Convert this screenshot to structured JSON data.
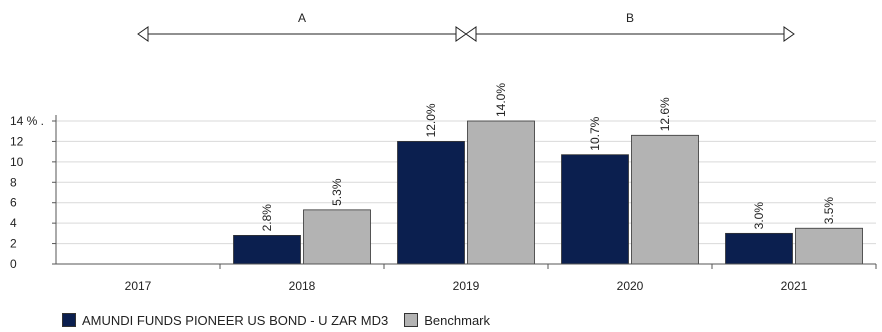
{
  "chart_data": {
    "type": "bar",
    "categories": [
      "2017",
      "2018",
      "2019",
      "2020",
      "2021"
    ],
    "series": [
      {
        "name": "AMUNDI FUNDS PIONEER US BOND - U ZAR MD3",
        "color": "#0b1f4f",
        "values": [
          null,
          2.8,
          12.0,
          10.7,
          3.0
        ],
        "labels": [
          "",
          "2.8%",
          "12.0%",
          "10.7%",
          "3.0%"
        ]
      },
      {
        "name": "Benchmark",
        "color": "#b3b3b3",
        "values": [
          null,
          5.3,
          14.0,
          12.6,
          3.5
        ],
        "labels": [
          "",
          "5.3%",
          "14.0%",
          "12.6%",
          "3.5%"
        ]
      }
    ],
    "yticks": [
      "0",
      "2",
      "4",
      "6",
      "8",
      "10",
      "12",
      "14 % ."
    ],
    "ylim": [
      0,
      14
    ],
    "grid": true,
    "periods": [
      {
        "label": "A",
        "from": "2017",
        "to": "2019"
      },
      {
        "label": "B",
        "from": "2019",
        "to": "2021"
      }
    ],
    "legend_position": "bottom-left"
  }
}
